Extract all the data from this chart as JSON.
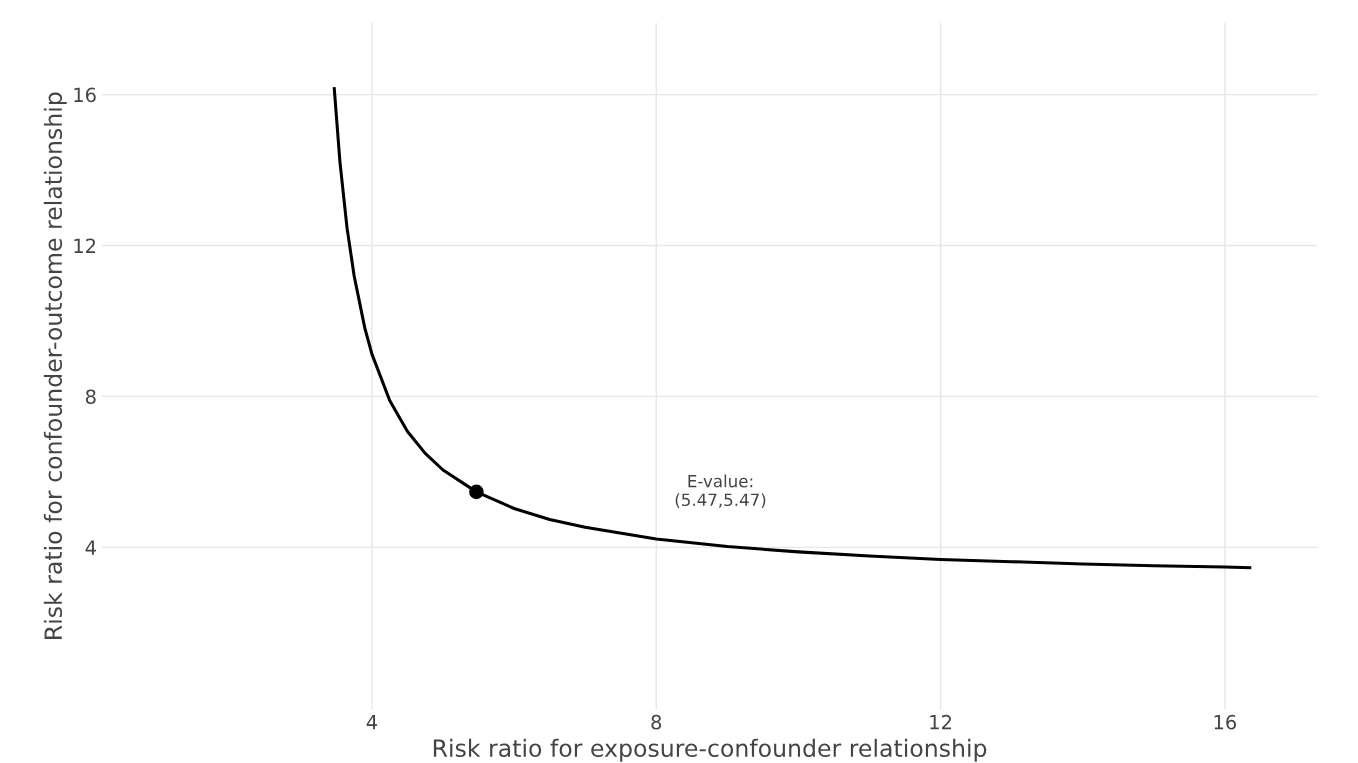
{
  "chart_data": {
    "type": "line",
    "xlabel": "Risk ratio for exposure-confounder relationship",
    "ylabel": "Risk ratio for confounder-outcome relationship",
    "series": [
      {
        "color": "#000000",
        "x": [
          3.47,
          3.55,
          3.65,
          3.75,
          3.9,
          4.0,
          4.25,
          4.5,
          4.75,
          5.0,
          5.47,
          6,
          6.5,
          7,
          8,
          9,
          10,
          11,
          12,
          13,
          14,
          15,
          16,
          16.35
        ],
        "values": [
          16.16,
          14.21,
          12.46,
          11.19,
          9.81,
          9.12,
          7.89,
          7.07,
          6.49,
          6.05,
          5.47,
          5.03,
          4.74,
          4.53,
          4.22,
          4.02,
          3.88,
          3.77,
          3.68,
          3.62,
          3.56,
          3.51,
          3.48,
          3.46
        ]
      },
      {
        "type": "scatter",
        "color": "#000000",
        "x": [
          5.47
        ],
        "values": [
          5.47
        ]
      }
    ],
    "annotations": [
      "E-value:\n(5.47,5.47)"
    ],
    "xlim": [
      0.2,
      17.3
    ],
    "ylim": [
      -0.3,
      17.9
    ],
    "xticks": [
      4,
      8,
      12,
      16
    ],
    "yticks": [
      4,
      8,
      12,
      16
    ],
    "grid": true
  }
}
